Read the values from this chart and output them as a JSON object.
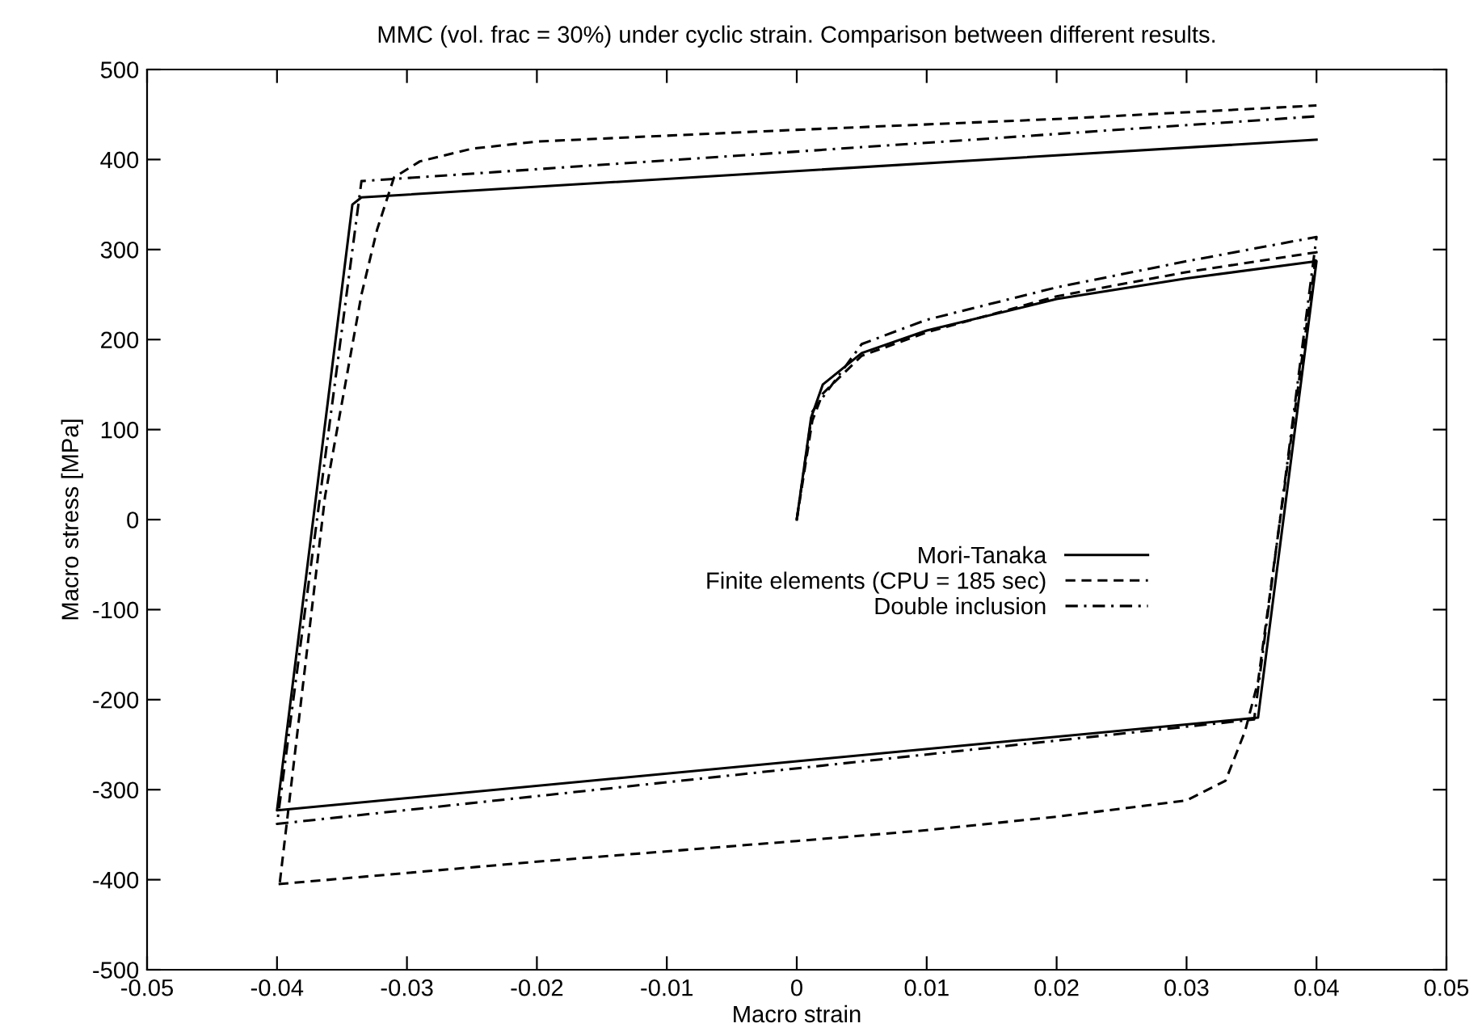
{
  "chart_data": {
    "type": "line",
    "title": "MMC (vol. frac = 30%) under cyclic strain. Comparison between different results.",
    "xlabel": "Macro strain",
    "ylabel": "Macro stress [MPa]",
    "xlim": [
      -0.05,
      0.05
    ],
    "xticks": [
      -0.05,
      -0.04,
      -0.03,
      -0.02,
      -0.01,
      0,
      0.01,
      0.02,
      0.03,
      0.04,
      0.05
    ],
    "ylim": [
      -500,
      500
    ],
    "yticks": [
      -500,
      -400,
      -300,
      -200,
      -100,
      0,
      100,
      200,
      300,
      400,
      500
    ],
    "grid": false,
    "legend": "center",
    "marker": "none",
    "series": [
      {
        "name": "Mori-Tanaka",
        "color": "#000000",
        "line_style": "solid",
        "x": [
          0,
          0.0011,
          0.002,
          0.005,
          0.01,
          0.02,
          0.03,
          0.04,
          0.0355,
          -0.04,
          -0.0342,
          -0.0335,
          0.04
        ],
        "values": [
          0,
          113,
          150,
          185,
          210,
          245,
          268,
          287,
          -220,
          -323,
          350,
          358,
          422
        ]
      },
      {
        "name": "Finite elements (CPU = 185 sec)",
        "color": "#000000",
        "line_style": "dashed",
        "x": [
          0,
          0.0012,
          0.002,
          0.005,
          0.01,
          0.02,
          0.03,
          0.04,
          0.0355,
          0.0345,
          0.033,
          0.03,
          0.02,
          0.01,
          0,
          -0.02,
          -0.04,
          -0.0398,
          -0.0363,
          -0.0335,
          -0.0323,
          -0.031,
          -0.029,
          -0.025,
          -0.02,
          0,
          0.02,
          0.04
        ],
        "values": [
          0,
          110,
          140,
          182,
          208,
          248,
          275,
          297,
          -180,
          -235,
          -290,
          -312,
          -330,
          -345,
          -357,
          -380,
          -405,
          -405,
          26,
          250,
          322,
          380,
          398,
          412,
          420,
          433,
          445,
          460
        ]
      },
      {
        "name": "Double inclusion",
        "color": "#000000",
        "line_style": "dashdot",
        "x": [
          0,
          0.0012,
          0.005,
          0.01,
          0.02,
          0.03,
          0.04,
          0.0352,
          -0.04,
          -0.0335,
          0.04
        ],
        "values": [
          0,
          120,
          195,
          222,
          258,
          287,
          314,
          -222,
          -338,
          376,
          448
        ]
      }
    ]
  }
}
